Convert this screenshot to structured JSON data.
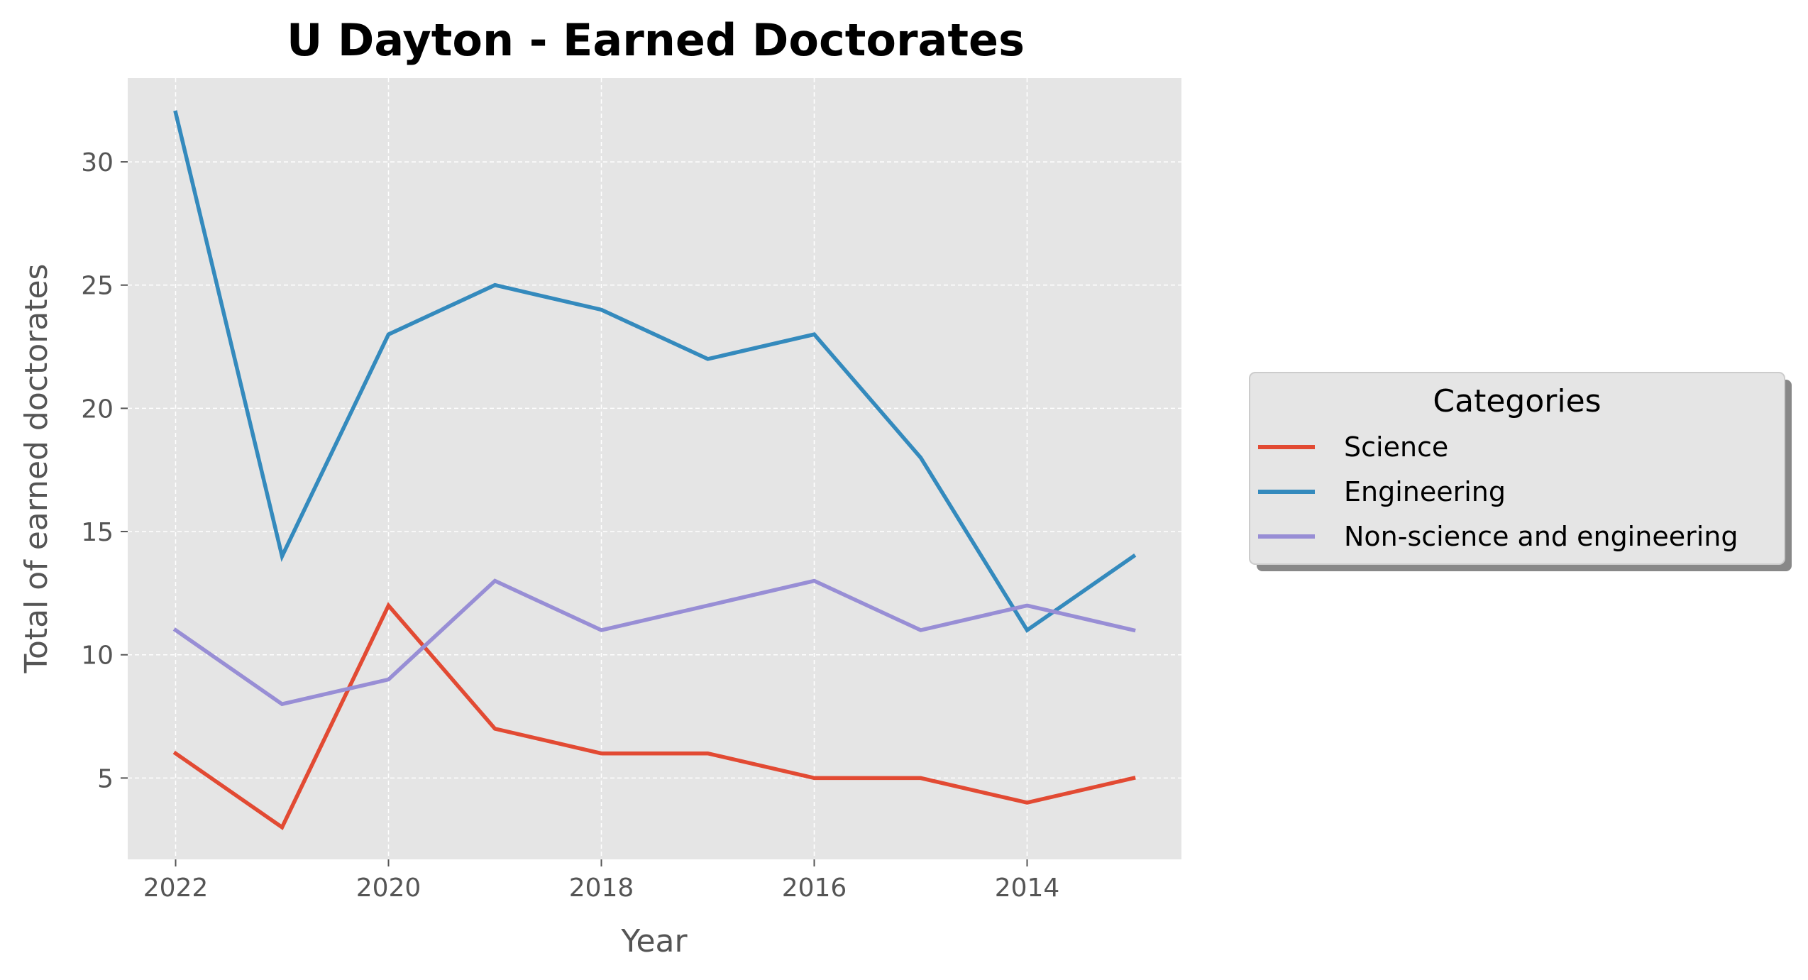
{
  "chart_data": {
    "type": "line",
    "title": "U Dayton - Earned Doctorates",
    "xlabel": "Year",
    "ylabel": "Total of earned doctorates",
    "x": [
      2022,
      2021,
      2020,
      2019,
      2018,
      2017,
      2016,
      2015,
      2014,
      2013
    ],
    "x_reversed": true,
    "xlim": [
      2022.45,
      2012.55
    ],
    "ylim": [
      1.7,
      33.4
    ],
    "x_ticks": [
      2022,
      2020,
      2018,
      2016,
      2014
    ],
    "y_ticks": [
      5,
      10,
      15,
      20,
      25,
      30
    ],
    "grid": true,
    "legend": {
      "title": "Categories",
      "placement": "center-right outside"
    },
    "series": [
      {
        "name": "Science",
        "color": "#E24A33",
        "values": [
          6,
          3,
          12,
          7,
          6,
          6,
          5,
          5,
          4,
          5
        ]
      },
      {
        "name": "Engineering",
        "color": "#348ABD",
        "values": [
          32,
          14,
          23,
          25,
          24,
          22,
          23,
          18,
          11,
          14
        ]
      },
      {
        "name": "Non-science and engineering",
        "color": "#988ED5",
        "values": [
          11,
          8,
          9,
          13,
          11,
          12,
          13,
          11,
          12,
          11
        ]
      }
    ]
  }
}
